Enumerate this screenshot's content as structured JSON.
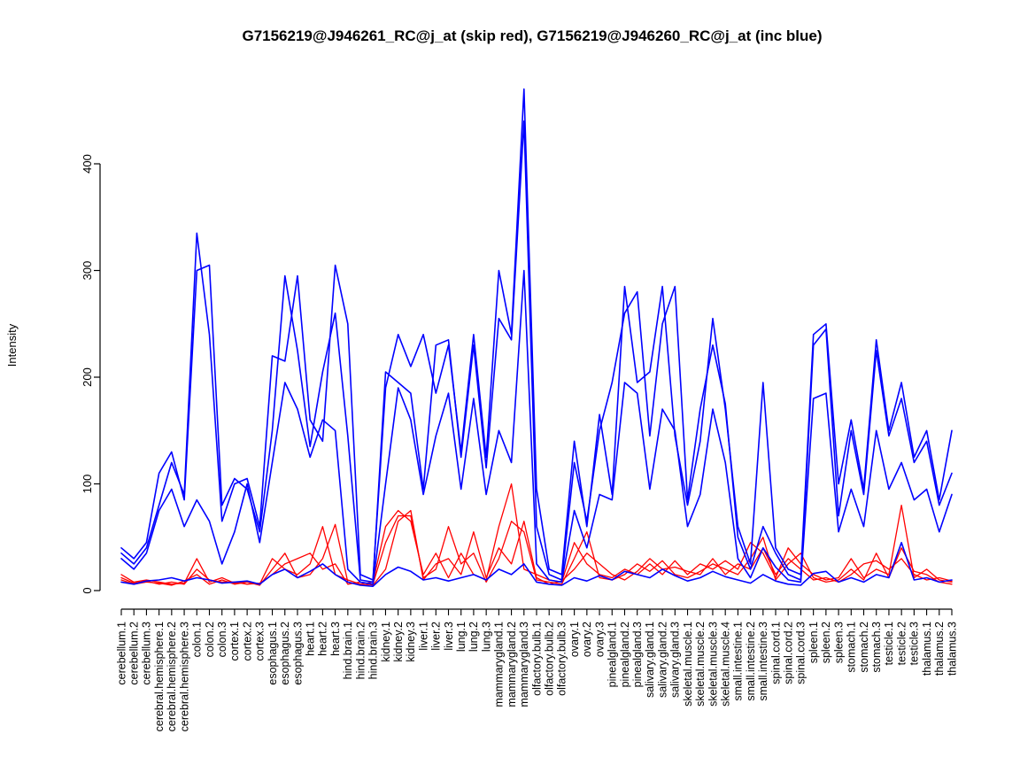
{
  "chart_data": {
    "type": "line",
    "title": "G7156219@J946261_RC@j_at (skip red), G7156219@J946260_RC@j_at (inc blue)",
    "xlabel": "",
    "ylabel": "Intensity",
    "ylim": [
      0,
      470
    ],
    "yticks": [
      0,
      100,
      200,
      300,
      400
    ],
    "grid": false,
    "legend_position": "none",
    "colors": {
      "skip_red": "#ff0000",
      "inc_blue": "#0000ff"
    },
    "categories": [
      "cerebellum.1",
      "cerebellum.2",
      "cerebellum.3",
      "cerebral.hemisphere.1",
      "cerebral.hemisphere.2",
      "cerebral.hemisphere.3",
      "colon.1",
      "colon.2",
      "colon.3",
      "cortex.1",
      "cortex.2",
      "cortex.3",
      "esophagus.1",
      "esophagus.2",
      "esophagus.3",
      "heart.1",
      "heart.2",
      "heart.3",
      "hind.brain.1",
      "hind.brain.2",
      "hind.brain.3",
      "kidney.1",
      "kidney.2",
      "kidney.3",
      "liver.1",
      "liver.2",
      "liver.3",
      "lung.1",
      "lung.2",
      "lung.3",
      "mammarygland.1",
      "mammarygland.2",
      "mammarygland.3",
      "olfactory.bulb.1",
      "olfactory.bulb.2",
      "olfactory.bulb.3",
      "ovary.1",
      "ovary.2",
      "ovary.3",
      "pinealgland.1",
      "pinealgland.2",
      "pinealgland.3",
      "salivary.gland.1",
      "salivary.gland.2",
      "salivary.gland.3",
      "skeletal.muscle.1",
      "skeletal.muscle.2",
      "skeletal.muscle.3",
      "skeletal.muscle.4",
      "small.intestine.1",
      "small.intestine.2",
      "small.intestine.3",
      "spinal.cord.1",
      "spinal.cord.2",
      "spinal.cord.3",
      "spleen.1",
      "spleen.2",
      "spleen.3",
      "stomach.1",
      "stomach.2",
      "stomach.3",
      "testicle.1",
      "testicle.2",
      "testicle.3",
      "thalamus.1",
      "thalamus.2",
      "thalamus.3"
    ],
    "series": [
      {
        "name": "skip-red-1",
        "color": "#ff0000",
        "values": [
          15,
          8,
          10,
          8,
          6,
          7,
          30,
          8,
          12,
          7,
          9,
          6,
          30,
          20,
          15,
          25,
          60,
          15,
          10,
          6,
          8,
          60,
          75,
          65,
          15,
          35,
          12,
          35,
          15,
          10,
          60,
          100,
          20,
          15,
          10,
          8,
          45,
          25,
          15,
          12,
          20,
          15,
          25,
          15,
          28,
          15,
          25,
          20,
          28,
          20,
          45,
          35,
          12,
          40,
          25,
          15,
          10,
          12,
          30,
          12,
          20,
          15,
          80,
          12,
          20,
          10,
          8
        ]
      },
      {
        "name": "skip-red-2",
        "color": "#ff0000",
        "values": [
          10,
          6,
          8,
          7,
          5,
          9,
          15,
          6,
          10,
          6,
          8,
          5,
          20,
          35,
          12,
          15,
          30,
          62,
          8,
          5,
          6,
          45,
          70,
          70,
          12,
          20,
          60,
          25,
          35,
          8,
          30,
          65,
          55,
          10,
          8,
          6,
          30,
          55,
          12,
          10,
          15,
          25,
          18,
          28,
          15,
          12,
          18,
          25,
          20,
          15,
          30,
          50,
          10,
          25,
          35,
          12,
          8,
          10,
          20,
          10,
          35,
          12,
          40,
          18,
          15,
          8,
          6
        ]
      },
      {
        "name": "skip-red-3",
        "color": "#ff0000",
        "values": [
          12,
          7,
          9,
          6,
          8,
          6,
          20,
          10,
          8,
          8,
          6,
          7,
          15,
          25,
          30,
          35,
          20,
          25,
          6,
          8,
          5,
          20,
          65,
          75,
          10,
          25,
          30,
          15,
          55,
          12,
          40,
          25,
          65,
          12,
          6,
          9,
          20,
          35,
          25,
          15,
          10,
          18,
          30,
          20,
          22,
          18,
          15,
          30,
          15,
          25,
          20,
          40,
          15,
          30,
          20,
          10,
          12,
          8,
          15,
          25,
          28,
          20,
          30,
          15,
          10,
          12,
          9
        ]
      },
      {
        "name": "inc-blue-4",
        "color": "#0000ff",
        "values": [
          8,
          6,
          9,
          10,
          12,
          9,
          12,
          10,
          7,
          8,
          9,
          6,
          15,
          20,
          12,
          18,
          25,
          15,
          8,
          5,
          4,
          15,
          22,
          18,
          10,
          12,
          9,
          12,
          15,
          10,
          20,
          15,
          25,
          8,
          6,
          5,
          12,
          9,
          14,
          10,
          18,
          15,
          12,
          20,
          14,
          9,
          12,
          18,
          13,
          10,
          7,
          15,
          9,
          6,
          5,
          16,
          18,
          8,
          12,
          8,
          15,
          12,
          45,
          10,
          12,
          8,
          10
        ]
      },
      {
        "name": "inc-blue-3",
        "color": "#0000ff",
        "values": [
          30,
          20,
          35,
          75,
          95,
          60,
          85,
          65,
          25,
          55,
          100,
          45,
          120,
          195,
          170,
          125,
          160,
          150,
          20,
          8,
          6,
          100,
          190,
          160,
          90,
          145,
          185,
          95,
          180,
          90,
          150,
          120,
          300,
          25,
          10,
          8,
          75,
          40,
          90,
          85,
          195,
          185,
          95,
          170,
          150,
          60,
          90,
          170,
          120,
          30,
          12,
          40,
          22,
          10,
          8,
          180,
          185,
          55,
          95,
          60,
          150,
          95,
          120,
          85,
          95,
          55,
          90
        ]
      },
      {
        "name": "inc-blue-2",
        "color": "#0000ff",
        "values": [
          40,
          30,
          45,
          110,
          130,
          85,
          300,
          305,
          80,
          105,
          95,
          55,
          150,
          295,
          225,
          135,
          205,
          260,
          145,
          10,
          8,
          205,
          195,
          185,
          95,
          230,
          235,
          125,
          230,
          115,
          255,
          235,
          440,
          60,
          15,
          10,
          120,
          65,
          150,
          195,
          260,
          280,
          145,
          250,
          285,
          85,
          170,
          230,
          175,
          50,
          20,
          60,
          35,
          15,
          10,
          230,
          245,
          70,
          150,
          90,
          225,
          145,
          180,
          120,
          140,
          80,
          110
        ]
      },
      {
        "name": "inc-blue-1",
        "color": "#0000ff",
        "values": [
          35,
          25,
          40,
          80,
          120,
          90,
          335,
          240,
          65,
          100,
          105,
          60,
          220,
          215,
          295,
          160,
          140,
          305,
          250,
          15,
          10,
          190,
          240,
          210,
          240,
          185,
          230,
          130,
          240,
          125,
          300,
          240,
          470,
          95,
          20,
          15,
          140,
          60,
          165,
          90,
          285,
          195,
          205,
          285,
          145,
          80,
          140,
          255,
          170,
          60,
          25,
          195,
          40,
          20,
          15,
          240,
          250,
          100,
          160,
          95,
          235,
          150,
          195,
          125,
          150,
          85,
          150
        ]
      }
    ]
  }
}
